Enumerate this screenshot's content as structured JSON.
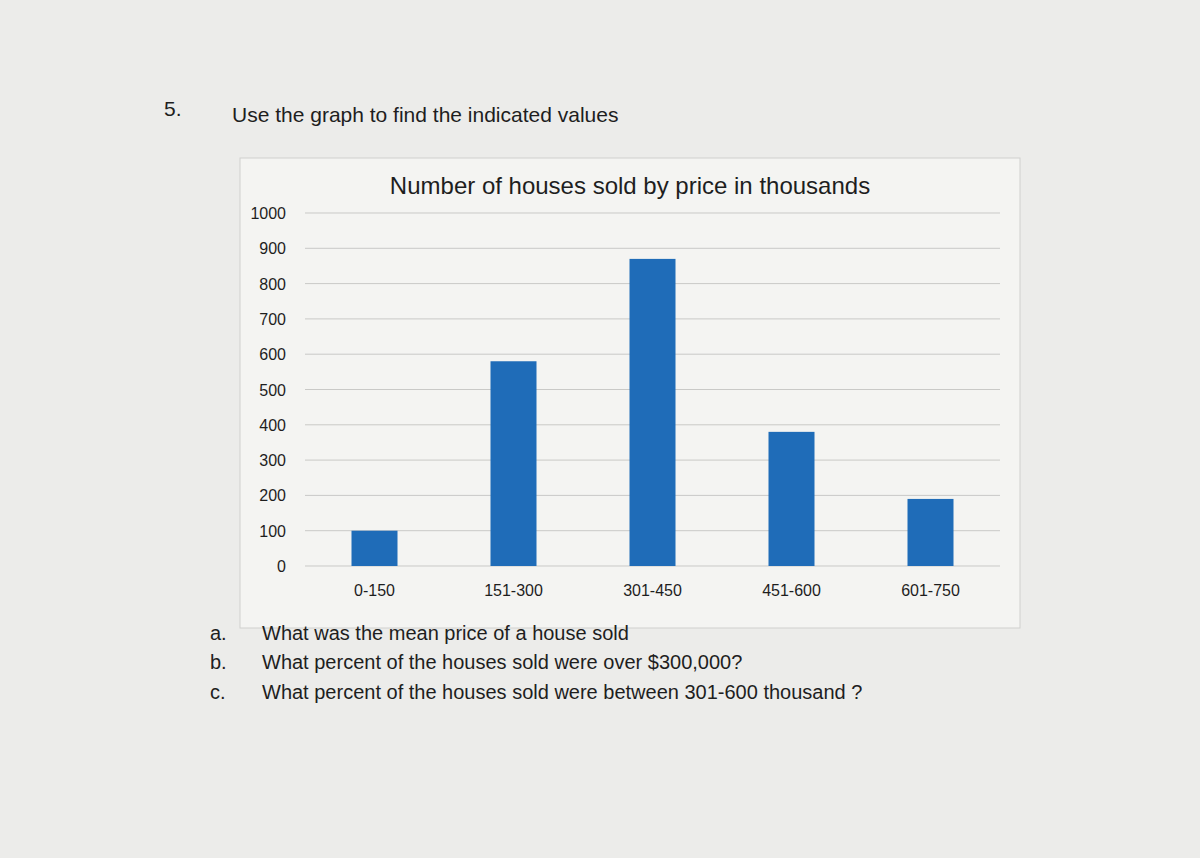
{
  "header": {
    "number": "5.",
    "instruction": "Use the graph to find the indicated values"
  },
  "chart_data": {
    "type": "bar",
    "title": "Number of houses sold by price in thousands",
    "categories": [
      "0-150",
      "151-300",
      "301-450",
      "451-600",
      "601-750"
    ],
    "values": [
      100,
      580,
      870,
      380,
      190
    ],
    "color": "#1f6cb8",
    "ylim": [
      0,
      1000
    ],
    "yticks": [
      0,
      100,
      200,
      300,
      400,
      500,
      600,
      700,
      800,
      900,
      1000
    ],
    "grid": true
  },
  "questions": [
    {
      "label": "a.",
      "text": "What was the mean price of a house sold"
    },
    {
      "label": "b.",
      "text": "What percent of the houses sold were over $300,000?"
    },
    {
      "label": "c.",
      "text": "What percent of the houses sold were between 301-600 thousand ?"
    }
  ]
}
